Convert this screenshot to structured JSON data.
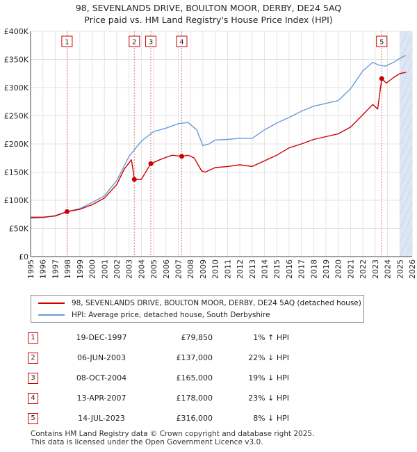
{
  "header": {
    "title_line1": "98, SEVENLANDS DRIVE, BOULTON MOOR, DERBY, DE24 5AQ",
    "title_line2": "Price paid vs. HM Land Registry's House Price Index (HPI)"
  },
  "colors": {
    "price": "#cc0000",
    "hpi": "#6a9bd8",
    "shade": "#dde6f5",
    "grid": "#e3e3e3"
  },
  "chart_data": {
    "type": "line",
    "ylim": [
      0,
      400000
    ],
    "xlim": [
      1995,
      2026
    ],
    "y_ticks": [
      0,
      50000,
      100000,
      150000,
      200000,
      250000,
      300000,
      350000,
      400000
    ],
    "y_tick_labels": [
      "£0",
      "£50K",
      "£100K",
      "£150K",
      "£200K",
      "£250K",
      "£300K",
      "£350K",
      "£400K"
    ],
    "x_ticks": [
      1995,
      1996,
      1997,
      1998,
      1999,
      2000,
      2001,
      2002,
      2003,
      2004,
      2005,
      2006,
      2007,
      2008,
      2009,
      2010,
      2011,
      2012,
      2013,
      2014,
      2015,
      2016,
      2017,
      2018,
      2019,
      2020,
      2021,
      2022,
      2023,
      2024,
      2025,
      2026
    ],
    "forecast_from": 2025.0,
    "series": [
      {
        "name": "98, SEVENLANDS DRIVE, BOULTON MOOR, DERBY, DE24 5AQ (detached house)",
        "color": "#cc0000",
        "x": [
          1995,
          1996,
          1997,
          1997.96,
          1999,
          2000,
          2001,
          2002,
          2002.6,
          2003.2,
          2003.43,
          2004,
          2004.77,
          2005.5,
          2006,
          2006.5,
          2007.28,
          2007.8,
          2008.3,
          2008.9,
          2009.2,
          2010,
          2011,
          2012,
          2013,
          2014,
          2015,
          2016,
          2017,
          2018,
          2019,
          2020,
          2021,
          2022,
          2022.8,
          2023.2,
          2023.53,
          2023.9,
          2024.5,
          2025,
          2025.5
        ],
        "values": [
          70000,
          70000,
          72000,
          79850,
          84000,
          92000,
          104000,
          128000,
          155000,
          172000,
          137000,
          137000,
          165000,
          172000,
          176000,
          180000,
          178000,
          180000,
          175000,
          152000,
          150000,
          158000,
          160000,
          163000,
          160000,
          170000,
          180000,
          193000,
          200000,
          208000,
          213000,
          218000,
          230000,
          252000,
          270000,
          262000,
          316000,
          308000,
          318000,
          325000,
          327000
        ]
      },
      {
        "name": "HPI: Average price, detached house, South Derbyshire",
        "color": "#6a9bd8",
        "x": [
          1995,
          1996,
          1997,
          1998,
          1999,
          2000,
          2001,
          2002,
          2003,
          2004,
          2005,
          2006,
          2007,
          2007.8,
          2008.5,
          2009.0,
          2009.5,
          2010,
          2011,
          2012,
          2013,
          2014,
          2015,
          2016,
          2017,
          2018,
          2019,
          2020,
          2021,
          2022,
          2022.8,
          2023.3,
          2023.8,
          2024.5,
          2025,
          2025.5
        ],
        "values": [
          68000,
          69000,
          73000,
          80000,
          85000,
          96000,
          108000,
          135000,
          178000,
          205000,
          222000,
          228000,
          236000,
          238000,
          225000,
          197000,
          200000,
          207000,
          208000,
          210000,
          210000,
          225000,
          237000,
          247000,
          258000,
          267000,
          272000,
          277000,
          298000,
          330000,
          345000,
          340000,
          338000,
          345000,
          352000,
          357000
        ]
      }
    ],
    "sales": [
      {
        "label": "1",
        "x": 1997.96,
        "price": 79850
      },
      {
        "label": "2",
        "x": 2003.43,
        "price": 137000
      },
      {
        "label": "3",
        "x": 2004.77,
        "price": 165000
      },
      {
        "label": "4",
        "x": 2007.28,
        "price": 178000
      },
      {
        "label": "5",
        "x": 2023.53,
        "price": 316000
      }
    ]
  },
  "legend": {
    "price_label": "98, SEVENLANDS DRIVE, BOULTON MOOR, DERBY, DE24 5AQ (detached house)",
    "hpi_label": "HPI: Average price, detached house, South Derbyshire"
  },
  "table": {
    "rows": [
      {
        "num": "1",
        "date": "19-DEC-1997",
        "price": "£79,850",
        "hpi": "1% ↑ HPI"
      },
      {
        "num": "2",
        "date": "06-JUN-2003",
        "price": "£137,000",
        "hpi": "22% ↓ HPI"
      },
      {
        "num": "3",
        "date": "08-OCT-2004",
        "price": "£165,000",
        "hpi": "19% ↓ HPI"
      },
      {
        "num": "4",
        "date": "13-APR-2007",
        "price": "£178,000",
        "hpi": "23% ↓ HPI"
      },
      {
        "num": "5",
        "date": "14-JUL-2023",
        "price": "£316,000",
        "hpi": "8% ↓ HPI"
      }
    ]
  },
  "footer": {
    "line1": "Contains HM Land Registry data © Crown copyright and database right 2025.",
    "line2": "This data is licensed under the Open Government Licence v3.0."
  }
}
